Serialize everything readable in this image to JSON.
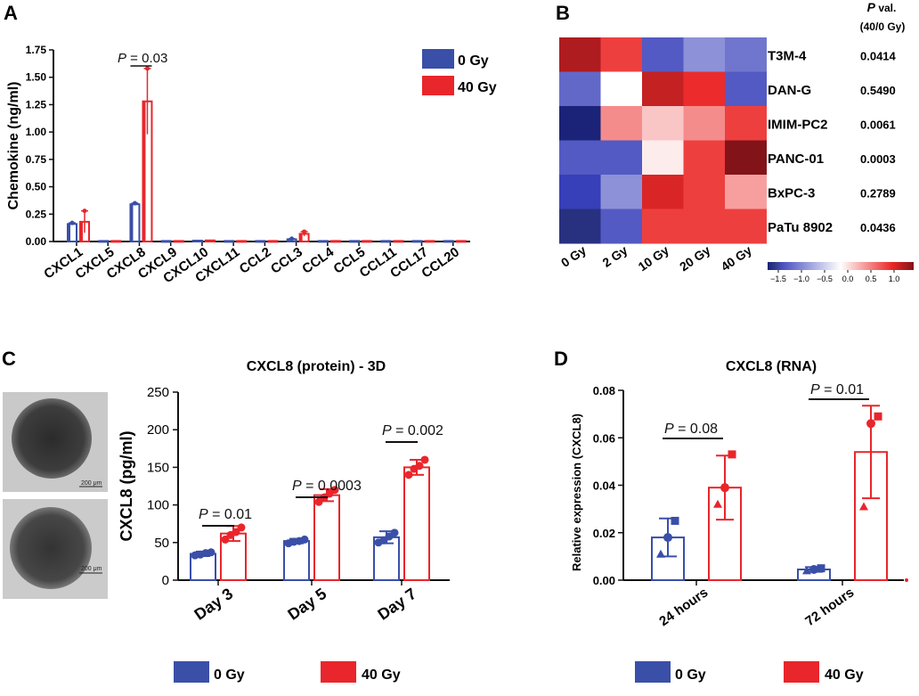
{
  "colors": {
    "gy0": "#3a4fa8",
    "gy40": "#e8262b",
    "axis": "#111111"
  },
  "panels": {
    "A": {
      "letter": "A"
    },
    "B": {
      "letter": "B",
      "pval_header": [
        "P",
        " val.",
        "(40/0 Gy)"
      ],
      "colorbar_ticks": [
        "−1.5",
        "−1.0",
        "−0.5",
        "0.0",
        "0.5",
        "1.0"
      ]
    },
    "C": {
      "letter": "C",
      "scale_bar": "200 μm"
    },
    "D": {
      "letter": "D"
    }
  },
  "chart_data": [
    {
      "id": "A",
      "type": "bar",
      "title": "",
      "ylabel": "Chemokine (ng/ml)",
      "ylim": [
        0,
        1.75
      ],
      "yticks": [
        "0.00",
        "0.25",
        "0.50",
        "0.75",
        "1.00",
        "1.25",
        "1.50",
        "1.75"
      ],
      "categories": [
        "CXCL1",
        "CXCL5",
        "CXCL8",
        "CXCL9",
        "CXCL10",
        "CXCL11",
        "CCL2",
        "CCL3",
        "CCL4",
        "CCL5",
        "CCL11",
        "CCL17",
        "CCL20"
      ],
      "series": [
        {
          "name": "0 Gy",
          "values": [
            0.16,
            0.005,
            0.34,
            0.005,
            0.008,
            0.005,
            0.005,
            0.02,
            0.005,
            0.005,
            0.005,
            0.005,
            0.005
          ],
          "err": [
            0.01,
            0,
            0.01,
            0,
            0,
            0,
            0,
            0.005,
            0,
            0,
            0,
            0,
            0
          ]
        },
        {
          "name": "40 Gy",
          "values": [
            0.18,
            0.005,
            1.28,
            0.005,
            0.01,
            0.005,
            0.005,
            0.07,
            0.005,
            0.005,
            0.005,
            0.005,
            0.005
          ],
          "err": [
            0.1,
            0,
            0.3,
            0,
            0,
            0,
            0,
            0.02,
            0,
            0,
            0,
            0,
            0
          ]
        }
      ],
      "legend": [
        "0 Gy",
        "40 Gy"
      ],
      "annotations": [
        {
          "text": "P = 0.03",
          "category": "CXCL8"
        }
      ]
    },
    {
      "id": "B",
      "type": "heatmap",
      "columns": [
        "0 Gy",
        "2 Gy",
        "10 Gy",
        "20 Gy",
        "40 Gy"
      ],
      "rows": [
        "T3M-4",
        "DAN-G",
        "IMIM-PC2",
        "PANC-01",
        "BxPC-3",
        "PaTu 8902"
      ],
      "pvalues": [
        "0.0414",
        "0.5490",
        "0.0061",
        "0.0003",
        "0.2789",
        "0.0436"
      ],
      "values": [
        [
          1.4,
          1.0,
          -1.2,
          -0.8,
          -1.0
        ],
        [
          -1.1,
          0.0,
          1.3,
          1.1,
          -1.2
        ],
        [
          -1.8,
          0.6,
          0.3,
          0.6,
          1.0
        ],
        [
          -1.2,
          -1.2,
          0.1,
          1.0,
          1.6
        ],
        [
          -1.4,
          -0.8,
          1.2,
          1.0,
          0.5
        ],
        [
          -1.5,
          -1.2,
          1.0,
          1.0,
          1.0
        ]
      ],
      "scale": [
        -1.5,
        1.5
      ]
    },
    {
      "id": "C",
      "type": "bar",
      "title": "CXCL8 (protein) - 3D",
      "ylabel": "CXCL8 (pg/ml)",
      "ylim": [
        0,
        250
      ],
      "yticks": [
        "0",
        "50",
        "100",
        "150",
        "200",
        "250"
      ],
      "categories": [
        "Day 3",
        "Day 5",
        "Day 7"
      ],
      "series": [
        {
          "name": "0 Gy",
          "values": [
            35,
            52,
            57
          ],
          "err": [
            3,
            3,
            8
          ],
          "points": [
            [
              33,
              34,
              36,
              37
            ],
            [
              49,
              51,
              52,
              54
            ],
            [
              50,
              53,
              58,
              63
            ]
          ]
        },
        {
          "name": "40 Gy",
          "values": [
            62,
            113,
            150
          ],
          "err": [
            10,
            8,
            10
          ],
          "points": [
            [
              54,
              60,
              64,
              70
            ],
            [
              104,
              110,
              115,
              120
            ],
            [
              140,
              148,
              152,
              160
            ]
          ]
        }
      ],
      "legend": [
        "0 Gy",
        "40 Gy"
      ],
      "annotations": [
        "P = 0.01",
        "P = 0.0003",
        "P = 0.002"
      ]
    },
    {
      "id": "D",
      "type": "bar",
      "title": "CXCL8 (RNA)",
      "ylabel": "Relative expression (CXCL8)",
      "ylim": [
        0,
        0.08
      ],
      "yticks": [
        "0.00",
        "0.02",
        "0.04",
        "0.06",
        "0.08"
      ],
      "categories": [
        "24 hours",
        "72 hours"
      ],
      "series": [
        {
          "name": "0 Gy",
          "values": [
            0.018,
            0.0045
          ],
          "err": [
            0.008,
            0.001
          ],
          "points": [
            [
              0.011,
              0.018,
              0.025
            ],
            [
              0.004,
              0.0045,
              0.005
            ]
          ]
        },
        {
          "name": "40 Gy",
          "values": [
            0.039,
            0.054
          ],
          "err": [
            0.0135,
            0.0195
          ],
          "points": [
            [
              0.032,
              0.039,
              0.053
            ],
            [
              0.031,
              0.066,
              0.069
            ]
          ]
        }
      ],
      "legend": [
        "0 Gy",
        "40 Gy"
      ],
      "annotations": [
        "P = 0.08",
        "P = 0.01"
      ]
    }
  ]
}
